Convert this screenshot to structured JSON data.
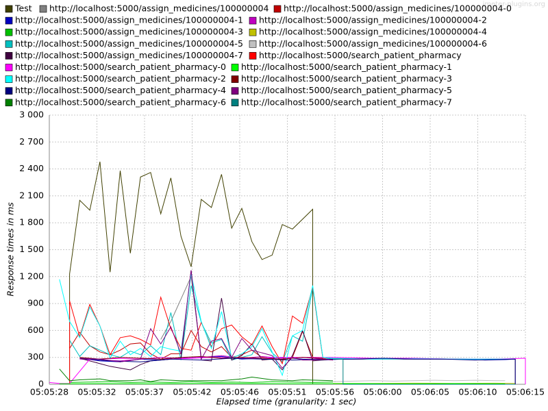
{
  "chart_data": {
    "type": "line",
    "watermark": "jmeter-plugins.org",
    "xlabel": "Elapsed time (granularity: 1 sec)",
    "ylabel": "Response times in ms",
    "xlim": [
      0,
      47
    ],
    "ylim": [
      0,
      3000
    ],
    "grid": true,
    "xticks": [
      {
        "value": 0,
        "label": "05:05:28"
      },
      {
        "value": 4.7,
        "label": "05:05:32"
      },
      {
        "value": 9.4,
        "label": "05:05:37"
      },
      {
        "value": 14.1,
        "label": "05:05:42"
      },
      {
        "value": 18.8,
        "label": "05:05:46"
      },
      {
        "value": 23.5,
        "label": "05:05:51"
      },
      {
        "value": 28.2,
        "label": "05:05:56"
      },
      {
        "value": 32.9,
        "label": "05:06:00"
      },
      {
        "value": 37.6,
        "label": "05:06:05"
      },
      {
        "value": 42.3,
        "label": "05:06:10"
      },
      {
        "value": 47,
        "label": "05:06:15"
      }
    ],
    "yticks": [
      0,
      300,
      600,
      900,
      {
        "value": 1200,
        "label": "1 200"
      },
      {
        "value": 1500,
        "label": "1 500"
      },
      {
        "value": 1800,
        "label": "1 800"
      },
      {
        "value": 2100,
        "label": "2 100"
      },
      {
        "value": 2400,
        "label": "2 400"
      },
      {
        "value": 2700,
        "label": "2 700"
      },
      {
        "value": 3000,
        "label": "3 000"
      }
    ],
    "series": [
      {
        "name": "Test",
        "color": "#404000",
        "x": [
          2,
          2,
          3,
          4,
          5,
          6,
          7,
          8,
          9,
          10,
          11,
          12,
          13,
          14,
          15,
          16,
          17,
          18,
          19,
          20,
          21,
          22,
          23,
          24,
          25,
          26,
          26
        ],
        "values": [
          0,
          1230,
          2050,
          1940,
          2480,
          1250,
          2380,
          1460,
          2310,
          2360,
          1900,
          2300,
          1650,
          1310,
          2060,
          1970,
          2340,
          1740,
          1960,
          1590,
          1390,
          1440,
          1780,
          1730,
          1840,
          1950,
          0
        ]
      },
      {
        "name": "http://localhost:5000/assign_medicines/100000004",
        "color": "#808080",
        "x": [
          11,
          12,
          13,
          14,
          15
        ],
        "values": [
          500,
          700,
          950,
          1200,
          300
        ]
      },
      {
        "name": "http://localhost:5000/assign_medicines/100000004-0",
        "color": "#c00000",
        "x": [
          2,
          3,
          4,
          5,
          6,
          7,
          8,
          9,
          10,
          11,
          12,
          13,
          14,
          15,
          16,
          17,
          18,
          19,
          20,
          21,
          22,
          23,
          24,
          25,
          26,
          27,
          28
        ],
        "values": [
          400,
          580,
          430,
          360,
          330,
          380,
          450,
          460,
          340,
          280,
          340,
          340,
          600,
          420,
          360,
          420,
          300,
          330,
          380,
          300,
          290,
          270,
          300,
          590,
          300,
          280,
          270
        ]
      },
      {
        "name": "http://localhost:5000/assign_medicines/100000004-1",
        "color": "#0000c0",
        "x": [
          3,
          5,
          7,
          9,
          11,
          13,
          15,
          17,
          19,
          21,
          23,
          25,
          27,
          29,
          31,
          33,
          35,
          37,
          39,
          41,
          43,
          45,
          46
        ],
        "values": [
          290,
          260,
          250,
          280,
          270,
          290,
          300,
          310,
          280,
          290,
          300,
          280,
          270,
          280,
          280,
          290,
          280,
          285,
          280,
          280,
          270,
          275,
          280
        ]
      },
      {
        "name": "http://localhost:5000/assign_medicines/100000004-2",
        "color": "#c000c0",
        "x": [
          3,
          5,
          7,
          9,
          11,
          13,
          15,
          17,
          19,
          21,
          23,
          25,
          27
        ],
        "values": [
          280,
          270,
          260,
          280,
          300,
          290,
          300,
          320,
          290,
          310,
          290,
          300,
          280
        ]
      },
      {
        "name": "http://localhost:5000/assign_medicines/100000004-3",
        "color": "#00c000",
        "x": [
          2,
          4,
          6,
          8,
          10,
          12,
          14,
          16,
          18,
          20,
          22,
          24,
          26,
          28
        ],
        "values": [
          20,
          25,
          30,
          20,
          25,
          20,
          30,
          20,
          25,
          20,
          30,
          25,
          20,
          25
        ]
      },
      {
        "name": "http://localhost:5000/assign_medicines/100000004-4",
        "color": "#c0c000",
        "x": [
          28,
          32,
          36,
          40,
          44,
          46
        ],
        "values": [
          10,
          10,
          12,
          10,
          12,
          10
        ]
      },
      {
        "name": "http://localhost:5000/assign_medicines/100000004-5",
        "color": "#00c0c0",
        "x": [
          2,
          3,
          4,
          5,
          6,
          7,
          8,
          9,
          10,
          11,
          12,
          13,
          14,
          15,
          16,
          17,
          18,
          19,
          20,
          21,
          22,
          23,
          24,
          25,
          26,
          27,
          28
        ],
        "values": [
          490,
          310,
          430,
          380,
          330,
          300,
          370,
          330,
          430,
          330,
          800,
          270,
          1100,
          690,
          460,
          500,
          270,
          300,
          330,
          530,
          350,
          250,
          540,
          480,
          1070,
          300,
          280
        ]
      },
      {
        "name": "http://localhost:5000/assign_medicines/100000004-6",
        "color": "#c0c0c0",
        "x": [
          28,
          30,
          32,
          34,
          36,
          38,
          40,
          42,
          44,
          45
        ],
        "values": [
          30,
          35,
          40,
          35,
          40,
          45,
          40,
          45,
          40,
          40
        ]
      },
      {
        "name": "http://localhost:5000/assign_medicines/100000004-7",
        "color": "#400040",
        "x": [
          3,
          4,
          5,
          6,
          7,
          8,
          9,
          10,
          11,
          12,
          13,
          14,
          15,
          16,
          17,
          18,
          19,
          20,
          21,
          22,
          23,
          24,
          25,
          26,
          28,
          32,
          36,
          40,
          44,
          46,
          46
        ],
        "values": [
          290,
          260,
          230,
          200,
          180,
          160,
          220,
          260,
          270,
          280,
          290,
          1270,
          270,
          260,
          960,
          270,
          320,
          450,
          270,
          280,
          160,
          320,
          600,
          260,
          280,
          280,
          280,
          280,
          280,
          280,
          0
        ]
      },
      {
        "name": "http://localhost:5000/search_patient_pharmacy",
        "color": "#ff0000",
        "x": [
          2,
          2,
          3,
          4,
          5,
          6,
          7,
          8,
          9,
          10,
          11,
          12,
          13,
          14,
          15,
          16,
          17,
          18,
          19,
          20,
          21,
          22,
          23,
          24,
          25,
          26,
          27,
          28
        ],
        "values": [
          0,
          930,
          530,
          890,
          650,
          330,
          520,
          540,
          500,
          440,
          970,
          620,
          400,
          380,
          690,
          420,
          620,
          660,
          530,
          440,
          650,
          420,
          230,
          760,
          680,
          1080,
          290,
          270
        ]
      },
      {
        "name": "http://localhost:5000/search_patient_pharmacy-0",
        "color": "#ff00ff",
        "x": [
          0,
          1,
          2,
          4,
          8,
          12,
          16,
          20,
          24,
          28,
          32,
          36,
          40,
          44,
          47,
          47
        ],
        "values": [
          20,
          10,
          10,
          280,
          290,
          280,
          300,
          290,
          300,
          300,
          290,
          290,
          280,
          280,
          290,
          0
        ]
      },
      {
        "name": "http://localhost:5000/search_patient_pharmacy-1",
        "color": "#00ff00",
        "x": [
          1,
          5,
          10,
          15,
          20,
          25,
          30,
          35,
          40,
          45
        ],
        "values": [
          5,
          8,
          5,
          10,
          8,
          5,
          8,
          5,
          8,
          5
        ]
      },
      {
        "name": "http://localhost:5000/search_patient_pharmacy-2",
        "color": "#00ffff",
        "x": [
          1,
          2,
          3,
          4,
          5,
          6,
          7,
          8,
          9,
          10,
          11,
          12,
          13,
          14,
          15,
          16,
          17,
          18,
          19,
          20,
          21,
          22,
          23,
          24,
          25,
          26,
          27,
          28,
          32,
          36,
          40,
          44,
          46
        ],
        "values": [
          1170,
          700,
          520,
          860,
          650,
          290,
          480,
          330,
          400,
          310,
          420,
          390,
          370,
          1230,
          700,
          400,
          810,
          290,
          340,
          420,
          620,
          360,
          100,
          540,
          600,
          1100,
          300,
          290,
          280,
          285,
          280,
          280,
          280
        ]
      },
      {
        "name": "http://localhost:5000/search_patient_pharmacy-3",
        "color": "#800000",
        "x": [
          3,
          5,
          7,
          9,
          11,
          13,
          15,
          17,
          19,
          21,
          23,
          25,
          27
        ],
        "values": [
          300,
          280,
          300,
          290,
          280,
          300,
          310,
          290,
          300,
          290,
          280,
          300,
          290
        ]
      },
      {
        "name": "http://localhost:5000/search_patient_pharmacy-4",
        "color": "#000080",
        "x": [
          3,
          6,
          9,
          12,
          15,
          18,
          21,
          24,
          27,
          30,
          33,
          36,
          39,
          42,
          46,
          46
        ],
        "values": [
          290,
          260,
          250,
          280,
          270,
          290,
          280,
          270,
          280,
          280,
          290,
          280,
          280,
          270,
          280,
          0
        ]
      },
      {
        "name": "http://localhost:5000/search_patient_pharmacy-5",
        "color": "#800080",
        "x": [
          3,
          5,
          7,
          9,
          10,
          11,
          12,
          13,
          14,
          15,
          16,
          17,
          18,
          19,
          20,
          21,
          22,
          23,
          24,
          25,
          26,
          27,
          28
        ],
        "values": [
          290,
          280,
          250,
          280,
          620,
          450,
          640,
          340,
          1270,
          280,
          480,
          510,
          300,
          510,
          380,
          350,
          320,
          180,
          300,
          270,
          270,
          280,
          270
        ]
      },
      {
        "name": "http://localhost:5000/search_patient_pharmacy-6",
        "color": "#008000",
        "x": [
          1,
          2,
          3,
          5,
          6,
          8,
          9,
          10,
          11,
          13,
          17,
          19,
          20,
          22,
          24,
          25,
          28
        ],
        "values": [
          170,
          40,
          50,
          60,
          40,
          40,
          50,
          30,
          50,
          40,
          40,
          60,
          80,
          50,
          40,
          50,
          40
        ]
      },
      {
        "name": "http://localhost:5000/search_patient_pharmacy-7",
        "color": "#008080",
        "x": [
          28,
          29,
          29,
          32,
          36,
          40,
          44,
          46
        ],
        "values": [
          280,
          280,
          0,
          0,
          0,
          0,
          0,
          0
        ]
      }
    ]
  }
}
